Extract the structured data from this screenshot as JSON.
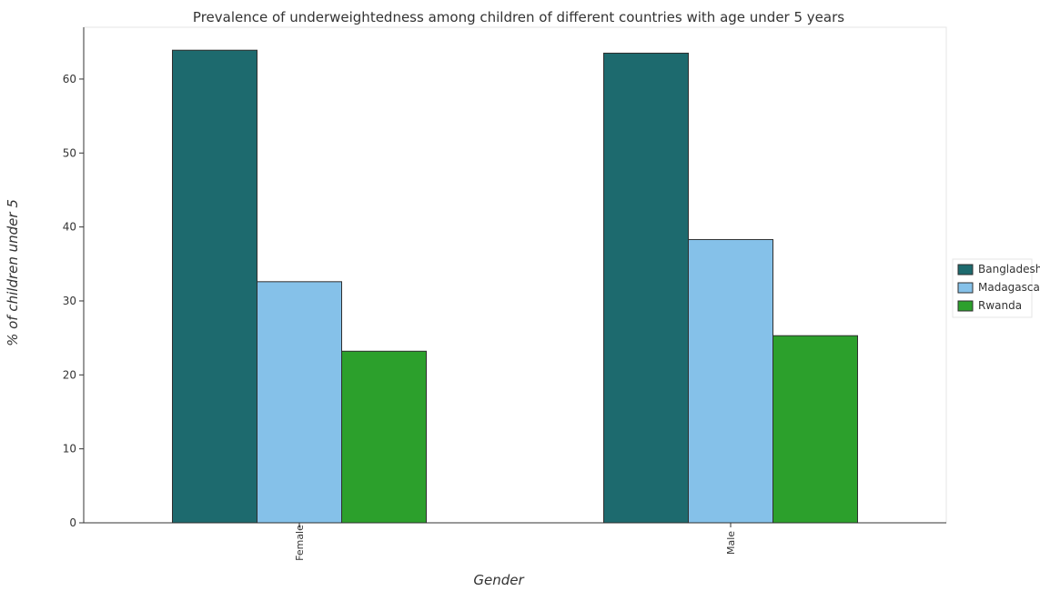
{
  "chart_data": {
    "type": "bar",
    "title": "Prevalence of underweightedness among children of different countries with age under 5 years",
    "xlabel": "Gender",
    "ylabel": "% of children under 5",
    "categories": [
      "Female",
      "Male"
    ],
    "series": [
      {
        "name": "Bangladesh",
        "color": "#1d6a6e",
        "values": [
          63.9,
          63.5
        ]
      },
      {
        "name": "Madagascar",
        "color": "#85c1e9",
        "values": [
          32.6,
          38.3
        ]
      },
      {
        "name": "Rwanda",
        "color": "#2ca02c",
        "values": [
          23.2,
          25.3
        ]
      }
    ],
    "ylim": [
      0,
      67
    ],
    "yticks": [
      0,
      10,
      20,
      30,
      40,
      50,
      60
    ],
    "grid": false,
    "legend_position": "right"
  }
}
